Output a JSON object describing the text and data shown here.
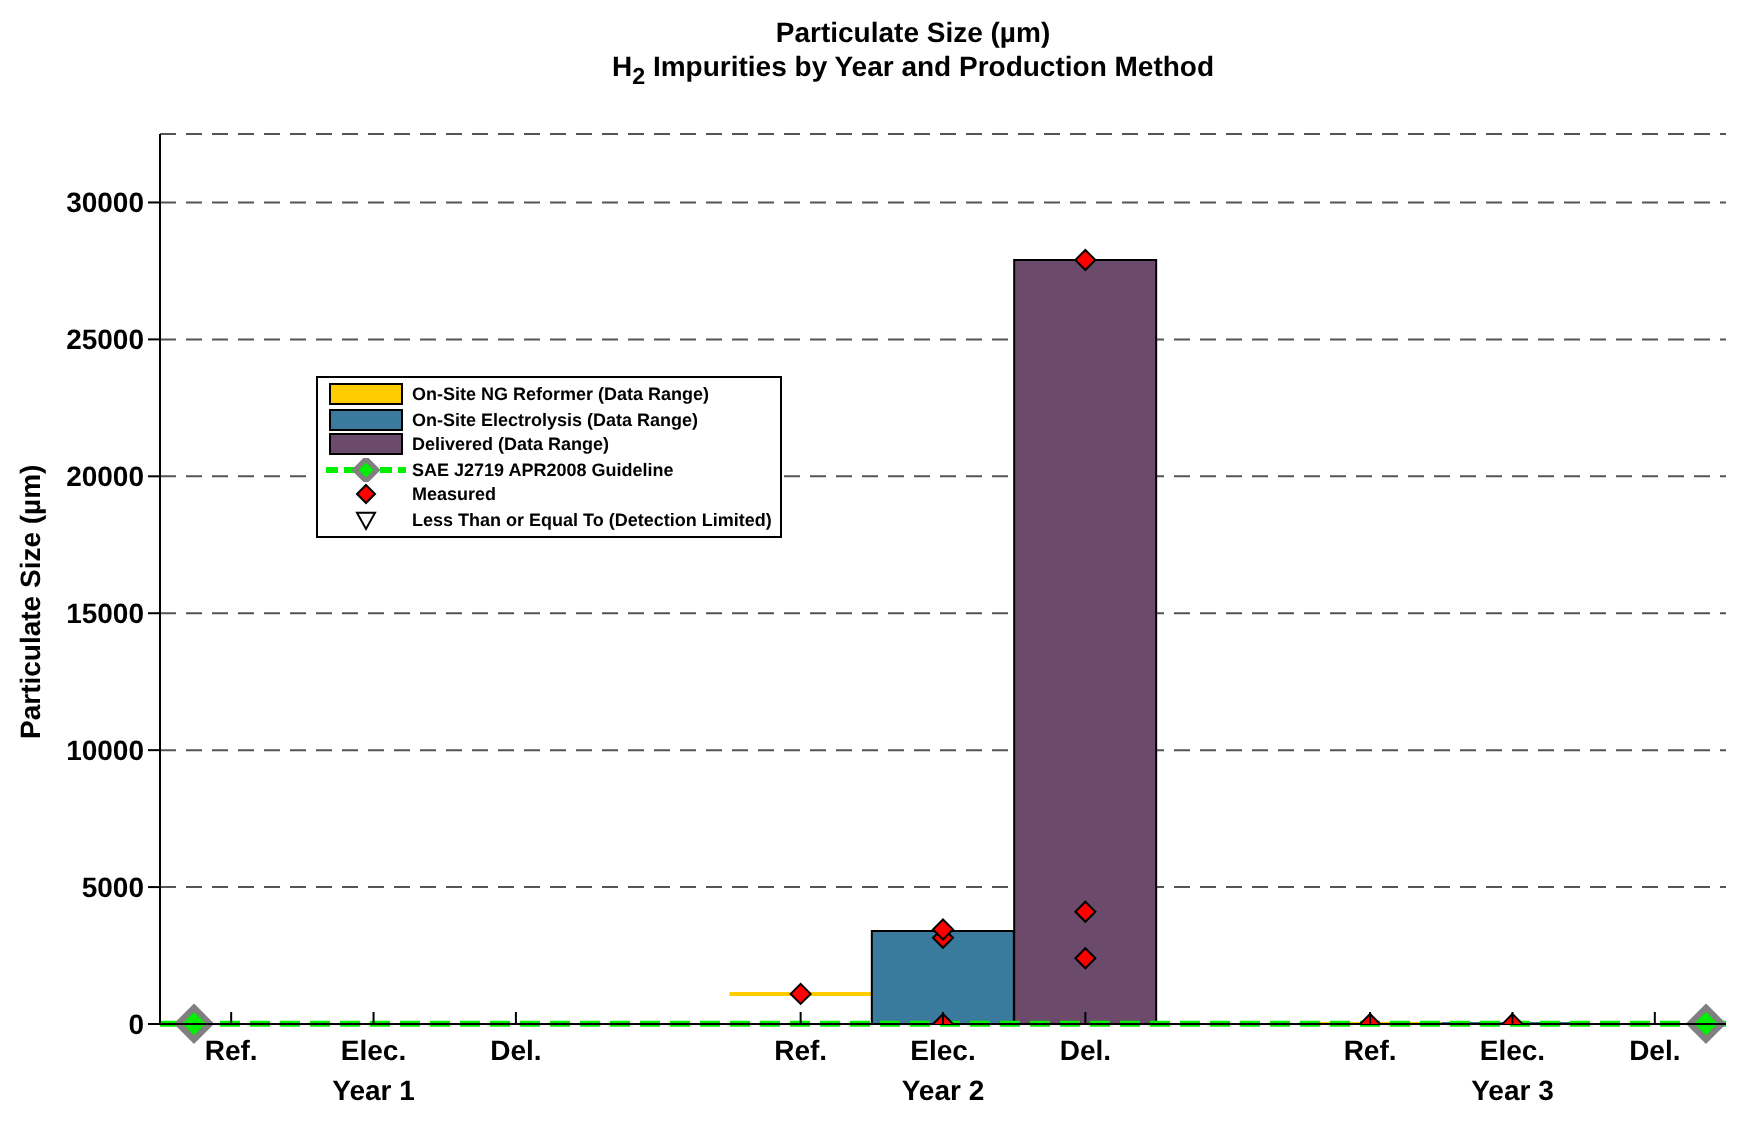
{
  "chart_data": {
    "type": "bar",
    "title": "Particulate Size (µm)",
    "subtitle": "H$_{2}$ Impurities by Year and Production Method",
    "ylabel": "Particulate Size (µm)",
    "categories": [
      "Ref.",
      "Elec.",
      "Del.",
      null,
      "Ref.",
      "Elec.",
      "Del.",
      null,
      "Ref.",
      "Elec.",
      "Del."
    ],
    "series": [
      {
        "name": "On-Site NG Reformer (Data Range)",
        "color": "#ffcc00",
        "values": [
          null,
          null,
          null,
          null,
          0,
          null,
          null,
          null,
          0,
          null,
          null
        ],
        "base": [
          null,
          null,
          null,
          null,
          1100,
          null,
          null,
          null,
          0,
          null,
          null
        ]
      },
      {
        "name": "On-Site Electrolysis (Data Range)",
        "color": "#3a7a9c",
        "values": [
          null,
          null,
          null,
          null,
          null,
          3400,
          null,
          null,
          null,
          0,
          null
        ],
        "base": [
          null,
          null,
          null,
          null,
          null,
          0,
          null,
          null,
          null,
          0,
          null
        ]
      },
      {
        "name": "Delivered (Data Range)",
        "color": "#6b4a6b",
        "values": [
          null,
          null,
          null,
          null,
          null,
          null,
          27900,
          null,
          null,
          null,
          null
        ],
        "base": [
          null,
          null,
          null,
          null,
          null,
          null,
          0,
          null,
          null,
          null,
          null
        ]
      },
      {
        "type": "scatter",
        "name": "Measured",
        "color": "#ff0000",
        "marker": "diamond",
        "values": [
          null,
          null,
          null,
          null,
          1100,
          3450,
          27900,
          null,
          0,
          0,
          null
        ]
      },
      {
        "type": "scatter",
        "color": "#ff0000",
        "marker": "diamond",
        "values": [
          null,
          null,
          null,
          null,
          null,
          3150,
          4100,
          null,
          null,
          null,
          null
        ]
      },
      {
        "type": "scatter",
        "color": "#ff0000",
        "marker": "diamond",
        "values": [
          null,
          null,
          null,
          null,
          null,
          0,
          2400,
          null,
          null,
          null,
          null
        ]
      },
      {
        "type": "scatter",
        "name": "Less Than or Equal To (Detection Limited)",
        "color": "#000000",
        "marker": "triangle",
        "values": [
          null,
          null,
          null,
          null,
          null,
          null,
          null,
          null,
          null,
          null,
          null
        ]
      }
    ],
    "ref_lines": [
      {
        "axis": "y",
        "value": 10,
        "label": "SAE J2719 APR2008 Guideline",
        "color": "#00ee00",
        "line_style": "dashed"
      }
    ],
    "annotations": [
      "Year 1",
      "Year 2",
      "Year 3"
    ],
    "ylim": [
      0,
      32500
    ],
    "yticks": [
      0,
      5000,
      10000,
      15000,
      20000,
      25000,
      30000
    ],
    "grid": "y",
    "legend": "top left"
  }
}
